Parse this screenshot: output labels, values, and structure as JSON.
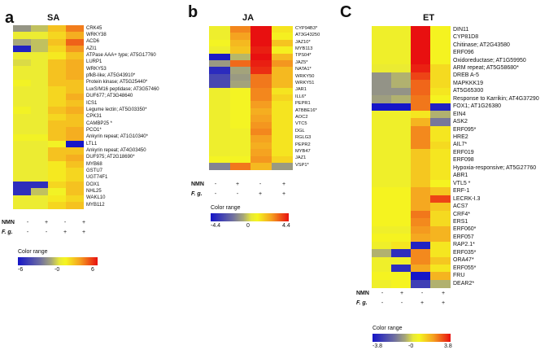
{
  "panels": [
    {
      "letter": "a",
      "title": "SA",
      "genes": [
        "CRK45",
        "WRKY38",
        "ACD6",
        "AZI1",
        "ATPase AAA+ type; AT5G17760",
        "LURP1",
        "WRKY53",
        "pfkB-like; AT5G43910*",
        "Protein kinase; AT5G25440*",
        "LuxS/M16 peptidase; AT3G57460",
        "DUF677; AT3G48640",
        "ICS1",
        "Legume lectin; AT5G03350*",
        "CPK31",
        "CAMBP25 *",
        "PCO1*",
        "Ankyrin repeat; AT1G10340*",
        "LTL1",
        "Ankyrin repeat; AT4G03450",
        "DUF975; AT2G18690*",
        "MYB68",
        "GSTU7",
        "UGT74F1",
        "DOX1",
        "NHL25",
        "WAKL10",
        "MYB112"
      ],
      "values": [
        [
          -1.5,
          -0.5,
          2.5,
          4.0
        ],
        [
          0.5,
          0.5,
          2.0,
          3.0
        ],
        [
          -1.0,
          -0.5,
          2.5,
          4.5
        ],
        [
          -5.5,
          -0.5,
          2.0,
          3.5
        ],
        [
          0.5,
          0.5,
          1.5,
          2.5
        ],
        [
          0.0,
          0.5,
          2.5,
          3.0
        ],
        [
          0.5,
          0.5,
          2.5,
          3.0
        ],
        [
          0.5,
          0.5,
          2.5,
          3.0
        ],
        [
          1.0,
          0.5,
          2.5,
          2.5
        ],
        [
          0.5,
          0.5,
          2.0,
          2.5
        ],
        [
          0.5,
          0.5,
          2.0,
          3.0
        ],
        [
          0.5,
          0.5,
          2.0,
          2.5
        ],
        [
          1.0,
          0.5,
          2.5,
          3.0
        ],
        [
          0.5,
          0.5,
          2.0,
          2.5
        ],
        [
          0.5,
          0.5,
          2.5,
          2.5
        ],
        [
          0.5,
          0.5,
          2.5,
          3.0
        ],
        [
          1.0,
          1.0,
          2.5,
          3.0
        ],
        [
          0.5,
          0.5,
          1.0,
          -6.0
        ],
        [
          0.5,
          0.5,
          2.5,
          2.5
        ],
        [
          0.5,
          0.5,
          2.5,
          3.0
        ],
        [
          0.5,
          0.5,
          1.5,
          2.5
        ],
        [
          0.5,
          0.5,
          1.5,
          2.0
        ],
        [
          0.5,
          0.5,
          1.5,
          2.0
        ],
        [
          -5.0,
          -5.0,
          2.0,
          2.5
        ],
        [
          -5.0,
          -0.5,
          1.0,
          2.5
        ],
        [
          0.5,
          0.5,
          1.5,
          2.0
        ],
        [
          0.5,
          0.5,
          2.0,
          2.5
        ]
      ],
      "min": -6,
      "max": 6,
      "treatments": [
        {
          "name": "NMN",
          "values": [
            "-",
            "+",
            "-",
            "+"
          ]
        },
        {
          "name": "F. g.",
          "values": [
            "-",
            "-",
            "+",
            "+"
          ]
        }
      ],
      "colorbar": {
        "title": "Color range",
        "ticks": [
          "-6",
          "-0",
          "6"
        ]
      }
    },
    {
      "letter": "b",
      "title": "JA",
      "genes": [
        "CYP94B3*",
        "AT3G43250",
        "JAZ10*",
        "MYB113",
        "TPS04*",
        "JAZ5*",
        "NATA1*",
        "WRKY50",
        "WRKY51",
        "JAR1",
        "ILL6*",
        "PEPR1",
        "ATBBE16*",
        "AOC2",
        "VTC5",
        "DGL",
        "RGLG3",
        "PEPR2",
        "MYB47",
        "JAZ1",
        "VSP1*"
      ],
      "values": [
        [
          0.5,
          2.8,
          4.4,
          1.2
        ],
        [
          0.5,
          2.4,
          4.4,
          1.0
        ],
        [
          0.8,
          2.0,
          4.4,
          1.8
        ],
        [
          0.5,
          1.8,
          4.2,
          1.0
        ],
        [
          -4.2,
          -0.5,
          4.4,
          2.0
        ],
        [
          -1.0,
          3.2,
          4.2,
          2.6
        ],
        [
          -3.8,
          -0.8,
          4.0,
          2.0
        ],
        [
          -3.0,
          -1.0,
          3.0,
          2.0
        ],
        [
          -3.0,
          -0.8,
          3.0,
          2.0
        ],
        [
          0.5,
          0.8,
          2.8,
          1.2
        ],
        [
          0.5,
          0.8,
          2.8,
          1.5
        ],
        [
          0.5,
          0.8,
          2.5,
          1.2
        ],
        [
          0.5,
          0.8,
          2.2,
          1.2
        ],
        [
          0.5,
          0.8,
          2.4,
          1.2
        ],
        [
          0.5,
          0.8,
          2.6,
          1.2
        ],
        [
          0.5,
          0.6,
          2.8,
          1.2
        ],
        [
          0.5,
          0.6,
          2.4,
          1.2
        ],
        [
          0.5,
          0.6,
          2.2,
          1.2
        ],
        [
          0.5,
          0.6,
          2.4,
          1.2
        ],
        [
          0.8,
          0.8,
          2.6,
          1.5
        ],
        [
          -1.5,
          3.0,
          2.0,
          -1.0
        ]
      ],
      "min": -4.4,
      "max": 4.4,
      "treatments": [
        {
          "name": "NMN",
          "values": [
            "-",
            "+",
            "-",
            "+"
          ]
        },
        {
          "name": "F. g.",
          "values": [
            "-",
            "-",
            "+",
            "+"
          ]
        }
      ],
      "colorbar": {
        "title": "Color range",
        "ticks": [
          "-4.4",
          "0",
          "4.4"
        ]
      }
    },
    {
      "letter": "C",
      "title": "ET",
      "genes": [
        "DIN11",
        "CYP81D8",
        "Chitinase; AT2G43580",
        "ERF096",
        "Oxidoreductase; AT1G59950",
        "ARM repeat; AT5G58680*",
        "DREB A-5",
        "MAPKKK19",
        "AT5G65300",
        "Response to Karrikin; AT4G37290",
        "FOX1; AT1G26380",
        "EIN4",
        "ASK2",
        "ERF095*",
        "HRE2",
        "AIL7*",
        "ERF019",
        "ERF098",
        "Hypoxia-responsive; AT5G27760",
        "ABR1",
        "VTL5 *",
        "ERF-1",
        "LECRK-I.3",
        "ACS7",
        "CRF4*",
        "ERS1",
        "ERF060*",
        "ERF057",
        "RAP2.1*",
        "ERF035*",
        "ORA47*",
        "ERF055*",
        "FRU",
        "DEAR2*"
      ],
      "values": [
        [
          0.5,
          0.5,
          3.8,
          0.8
        ],
        [
          0.5,
          0.5,
          3.8,
          0.8
        ],
        [
          0.5,
          0.5,
          3.8,
          0.8
        ],
        [
          0.5,
          0.5,
          3.8,
          0.8
        ],
        [
          0.5,
          0.5,
          3.8,
          0.8
        ],
        [
          0.3,
          0.3,
          3.6,
          1.2
        ],
        [
          -1.0,
          -0.5,
          3.2,
          1.2
        ],
        [
          -1.0,
          -0.5,
          2.8,
          1.2
        ],
        [
          -1.0,
          -1.0,
          2.8,
          1.0
        ],
        [
          -0.8,
          -0.5,
          2.6,
          0.8
        ],
        [
          -3.8,
          -3.8,
          2.6,
          -3.5
        ],
        [
          0.5,
          0.5,
          1.0,
          -0.5
        ],
        [
          0.5,
          0.5,
          1.8,
          -1.5
        ],
        [
          0.5,
          0.5,
          2.4,
          1.0
        ],
        [
          0.5,
          0.5,
          2.4,
          1.0
        ],
        [
          0.5,
          0.5,
          2.4,
          1.2
        ],
        [
          0.5,
          0.5,
          1.5,
          1.0
        ],
        [
          0.5,
          0.5,
          1.5,
          1.0
        ],
        [
          0.5,
          0.5,
          1.5,
          1.0
        ],
        [
          0.5,
          0.5,
          1.5,
          1.0
        ],
        [
          0.5,
          0.5,
          1.5,
          0.8
        ],
        [
          0.8,
          0.8,
          2.0,
          1.5
        ],
        [
          0.8,
          0.8,
          2.0,
          3.2
        ],
        [
          0.8,
          0.8,
          2.0,
          1.5
        ],
        [
          0.8,
          0.8,
          2.6,
          1.2
        ],
        [
          0.8,
          0.8,
          2.4,
          1.2
        ],
        [
          0.5,
          0.5,
          2.2,
          1.8
        ],
        [
          0.8,
          0.8,
          2.0,
          1.8
        ],
        [
          0.5,
          1.0,
          -3.5,
          1.0
        ],
        [
          -0.5,
          -3.2,
          2.4,
          1.0
        ],
        [
          0.5,
          0.5,
          2.4,
          1.5
        ],
        [
          0.5,
          -3.2,
          2.0,
          1.0
        ],
        [
          0.8,
          0.8,
          -3.8,
          1.8
        ],
        [
          0.5,
          0.8,
          -2.8,
          -0.5
        ]
      ],
      "min": -3.8,
      "max": 3.8,
      "treatments": [
        {
          "name": "NMN",
          "values": [
            "-",
            "+",
            "-",
            "+"
          ]
        },
        {
          "name": "F. g.",
          "values": [
            "-",
            "-",
            "+",
            "+"
          ]
        }
      ],
      "colorbar": {
        "title": "Color range",
        "ticks": [
          "-3.8",
          "-0",
          "3.8"
        ]
      }
    }
  ]
}
